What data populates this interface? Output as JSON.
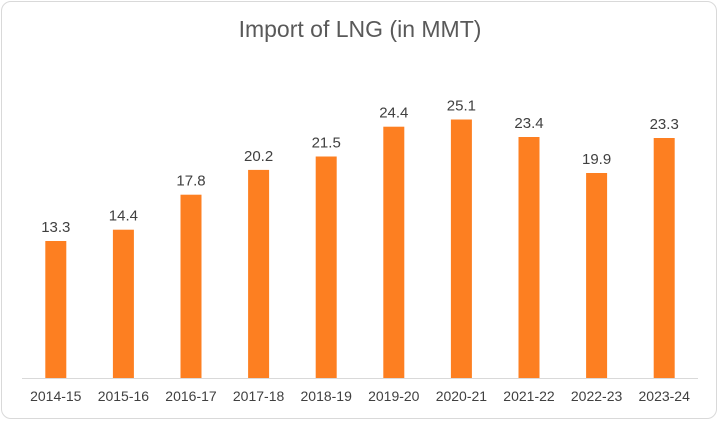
{
  "chart_data": {
    "type": "bar",
    "title": "Import of LNG (in MMT)",
    "categories": [
      "2014-15",
      "2015-16",
      "2016-17",
      "2017-18",
      "2018-19",
      "2019-20",
      "2020-21",
      "2021-22",
      "2022-23",
      "2023-24"
    ],
    "values": [
      13.3,
      14.4,
      17.8,
      20.2,
      21.5,
      24.4,
      25.1,
      23.4,
      19.9,
      23.3
    ],
    "value_labels": [
      "13.3",
      "14.4",
      "17.8",
      "20.2",
      "21.5",
      "24.4",
      "25.1",
      "23.4",
      "19.9",
      "23.3"
    ],
    "xlabel": "",
    "ylabel": "",
    "ylim": [
      0,
      30
    ],
    "grid": false,
    "legend": "none",
    "bar_color": "#fd7f21",
    "axis_color": "#d9d9d9"
  }
}
